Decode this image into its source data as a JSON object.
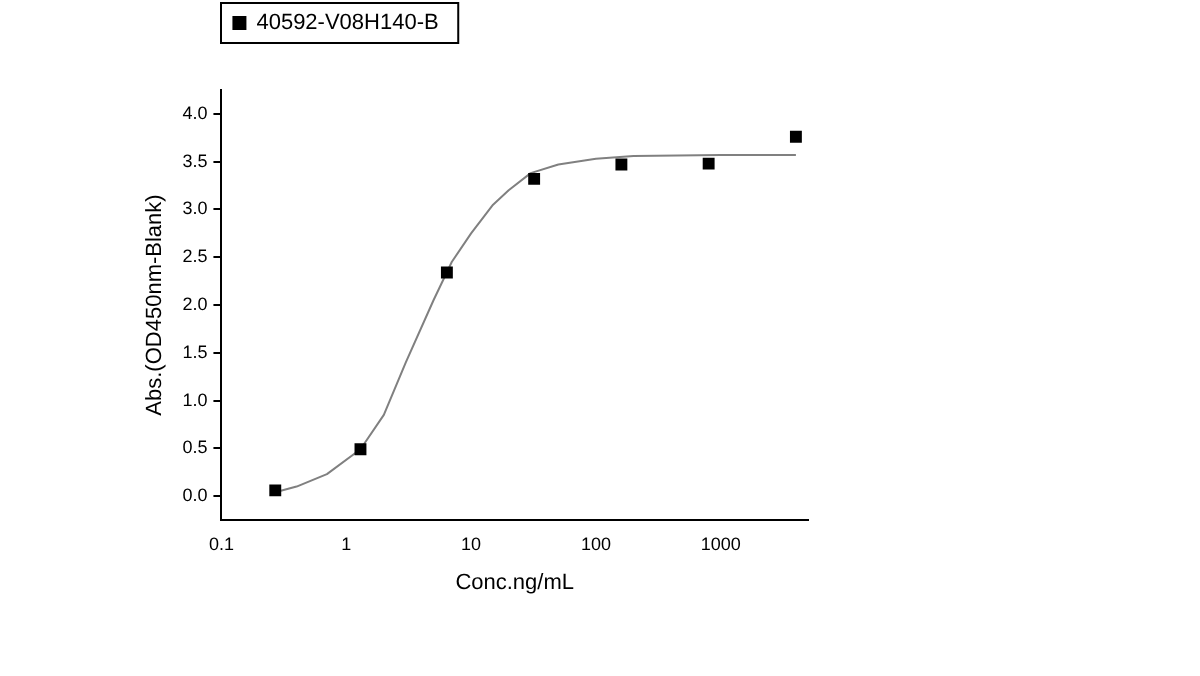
{
  "chart_data": {
    "type": "scatter",
    "xlabel": "Conc.ng/mL",
    "ylabel": "Abs.(OD450nm-Blank)",
    "log": "x",
    "xlim": [
      0.1,
      5000
    ],
    "xticks": [
      0.1,
      1,
      10,
      100,
      1000
    ],
    "ylim": [
      -0.25,
      4.25
    ],
    "yticks": [
      {
        "value": 0,
        "label": "0.0"
      },
      {
        "value": 0.5,
        "label": "0.5"
      },
      {
        "value": 1,
        "label": "1.0"
      },
      {
        "value": 1.5,
        "label": "1.5"
      },
      {
        "value": 2,
        "label": "2.0"
      },
      {
        "value": 2.5,
        "label": "2.5"
      },
      {
        "value": 3,
        "label": "3.0"
      },
      {
        "value": 3.5,
        "label": "3.5"
      },
      {
        "value": 4,
        "label": "4.0"
      }
    ],
    "grid": false,
    "legend": "top left",
    "marker": "square",
    "series": [
      {
        "name": "40592-V08H140-B",
        "color": "#000000",
        "x": [
          0.27,
          1.3,
          6.4,
          32,
          160,
          800,
          4000
        ],
        "values": [
          0.06,
          0.49,
          2.34,
          3.32,
          3.47,
          3.48,
          3.76
        ]
      },
      {
        "type": "line",
        "color": "#808080",
        "marker": "none",
        "x": [
          0.27,
          0.4,
          0.7,
          1.3,
          2,
          3,
          5,
          7,
          10,
          15,
          20,
          30,
          50,
          100,
          200,
          1000,
          4000
        ],
        "values": [
          0.04,
          0.1,
          0.23,
          0.49,
          0.85,
          1.4,
          2.05,
          2.45,
          2.75,
          3.05,
          3.2,
          3.38,
          3.47,
          3.53,
          3.56,
          3.57,
          3.57
        ]
      }
    ]
  }
}
